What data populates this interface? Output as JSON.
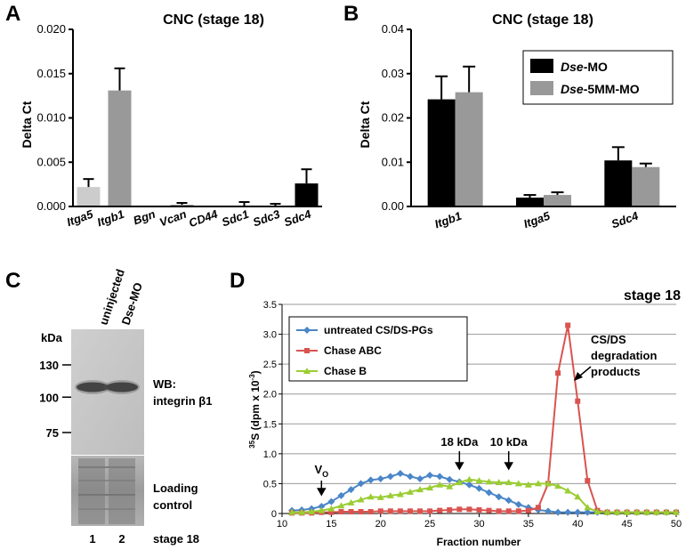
{
  "panels": {
    "A": {
      "letter": "A",
      "chart_data": {
        "type": "bar",
        "title": "CNC (stage 18)",
        "ylabel": "Delta Ct",
        "ylim": [
          0,
          0.02
        ],
        "yticks": [
          "0.000",
          "0.005",
          "0.010",
          "0.015",
          "0.020"
        ],
        "categories": [
          "Itga5",
          "Itgb1",
          "Bgn",
          "Vcan",
          "CD44",
          "Sdc1",
          "Sdc3",
          "Sdc4"
        ],
        "values": [
          0.0022,
          0.0131,
          0.0,
          0.0002,
          0.0,
          0.0001,
          0.0001,
          0.0026
        ],
        "errors": [
          0.0009,
          0.0025,
          0.0,
          0.0002,
          0.0,
          0.0004,
          0.0002,
          0.0016
        ],
        "colors": [
          "#cccccc",
          "#999999",
          "#cccccc",
          "#999999",
          "#cccccc",
          "#999999",
          "#cccccc",
          "#000000"
        ]
      }
    },
    "B": {
      "letter": "B",
      "chart_data": {
        "type": "bar",
        "title": "CNC (stage 18)",
        "ylabel": "Delta Ct",
        "ylim": [
          0,
          0.04
        ],
        "yticks": [
          "0.00",
          "0.01",
          "0.02",
          "0.03",
          "0.04"
        ],
        "categories": [
          "Itgb1",
          "Itga5",
          "Sdc4"
        ],
        "series": [
          {
            "name_italic": "Dse",
            "name_rest": "-MO",
            "color": "#000000",
            "values": [
              0.0242,
              0.002,
              0.0104
            ],
            "errors": [
              0.0052,
              0.0006,
              0.003
            ]
          },
          {
            "name_italic": "Dse",
            "name_rest": "-5MM-MO",
            "color": "#999999",
            "values": [
              0.0258,
              0.0026,
              0.0089
            ],
            "errors": [
              0.0058,
              0.0006,
              0.0008
            ]
          }
        ]
      }
    },
    "C": {
      "letter": "C",
      "lane_headers": [
        "uninjected",
        "Dse-MO"
      ],
      "kda_label": "kDa",
      "markers": [
        "130",
        "100",
        "75"
      ],
      "marker_kda": [
        130,
        100,
        75
      ],
      "wb_label": [
        "WB:",
        "integrin β1"
      ],
      "loading_label": [
        "Loading",
        "control"
      ],
      "lane_numbers": [
        "1",
        "2"
      ],
      "stage_label": "stage 18"
    },
    "D": {
      "letter": "D",
      "chart_data": {
        "type": "line",
        "title": "stage 18",
        "xlabel": "Fraction number",
        "ylabel": "35S (dpm x 10-3)",
        "ylabel_parts": {
          "sup1": "35",
          "main": "S (dpm x 10",
          "sup2": "-3",
          "end": ")"
        },
        "xlim": [
          10,
          50
        ],
        "ylim": [
          0,
          3.5
        ],
        "xticks": [
          "10",
          "15",
          "20",
          "25",
          "30",
          "35",
          "40",
          "45",
          "50"
        ],
        "yticks": [
          "0",
          "0.5",
          "1.0",
          "1.5",
          "2.0",
          "2.5",
          "3.0",
          "3.5"
        ],
        "grid": "horizontal",
        "legend_position": "top-left",
        "series": [
          {
            "name": "untreated CS/DS-PGs",
            "color": "#4a86c8",
            "marker": "diamond",
            "x": [
              11,
              12,
              13,
              14,
              15,
              16,
              17,
              18,
              19,
              20,
              21,
              22,
              23,
              24,
              25,
              26,
              27,
              28,
              29,
              30,
              31,
              32,
              33,
              34,
              35,
              36,
              37,
              38,
              39,
              40,
              41,
              42,
              43,
              44,
              45,
              46,
              47,
              48,
              49,
              50
            ],
            "y": [
              0.05,
              0.06,
              0.08,
              0.12,
              0.2,
              0.3,
              0.4,
              0.5,
              0.56,
              0.58,
              0.62,
              0.67,
              0.62,
              0.58,
              0.64,
              0.62,
              0.57,
              0.53,
              0.48,
              0.42,
              0.35,
              0.28,
              0.22,
              0.15,
              0.1,
              0.06,
              0.04,
              0.02,
              0.02,
              0.02,
              0.02,
              0.02,
              0.02,
              0.02,
              0.02,
              0.02,
              0.02,
              0.02,
              0.02,
              0.02
            ]
          },
          {
            "name": "Chase ABC",
            "color": "#d9534f",
            "marker": "square",
            "x": [
              11,
              12,
              13,
              14,
              15,
              16,
              17,
              18,
              19,
              20,
              21,
              22,
              23,
              24,
              25,
              26,
              27,
              28,
              29,
              30,
              31,
              32,
              33,
              34,
              35,
              36,
              37,
              38,
              39,
              40,
              41,
              42,
              43,
              44,
              45,
              46,
              47,
              48,
              49,
              50
            ],
            "y": [
              0.01,
              0.01,
              0.01,
              0.02,
              0.02,
              0.03,
              0.03,
              0.03,
              0.03,
              0.04,
              0.04,
              0.04,
              0.04,
              0.04,
              0.04,
              0.05,
              0.06,
              0.07,
              0.07,
              0.06,
              0.05,
              0.04,
              0.04,
              0.04,
              0.05,
              0.1,
              0.5,
              2.35,
              3.15,
              1.88,
              0.55,
              0.05,
              0.02,
              0.02,
              0.02,
              0.02,
              0.02,
              0.02,
              0.02,
              0.02
            ]
          },
          {
            "name": "Chase B",
            "color": "#9acd32",
            "marker": "triangle",
            "x": [
              11,
              12,
              13,
              14,
              15,
              16,
              17,
              18,
              19,
              20,
              21,
              22,
              23,
              24,
              25,
              26,
              27,
              28,
              29,
              30,
              31,
              32,
              33,
              34,
              35,
              36,
              37,
              38,
              39,
              40,
              41,
              42,
              43,
              44,
              45,
              46,
              47,
              48,
              49,
              50
            ],
            "y": [
              0.02,
              0.02,
              0.03,
              0.05,
              0.08,
              0.13,
              0.18,
              0.23,
              0.28,
              0.27,
              0.3,
              0.32,
              0.36,
              0.4,
              0.43,
              0.48,
              0.45,
              0.52,
              0.57,
              0.55,
              0.53,
              0.52,
              0.52,
              0.5,
              0.48,
              0.5,
              0.5,
              0.46,
              0.38,
              0.28,
              0.1,
              0.03,
              0.02,
              0.02,
              0.02,
              0.02,
              0.02,
              0.02,
              0.02,
              0.02
            ]
          }
        ],
        "annotations": [
          {
            "id": "vo",
            "text_main": "V",
            "text_sub": "O",
            "x": 14
          },
          {
            "id": "kda18",
            "text": "18 kDa",
            "x": 28
          },
          {
            "id": "kda10",
            "text": "10 kDa",
            "x": 33
          },
          {
            "id": "csds",
            "lines": [
              "CS/DS",
              "degradation",
              "products"
            ]
          }
        ]
      }
    }
  }
}
